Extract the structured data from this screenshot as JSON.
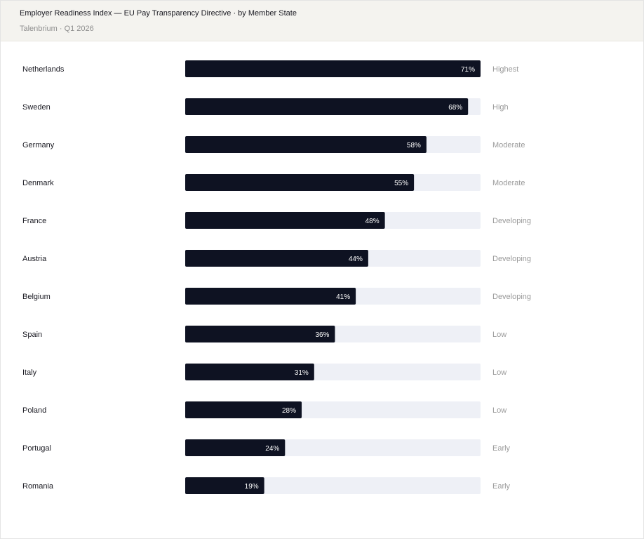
{
  "header": {
    "title": "Employer Readiness Index — EU Pay Transparency Directive · by Member State",
    "subtitle": "Talenbrium · Q1 2026"
  },
  "colors": {
    "bar_fill": "#0e1222",
    "track": "#eef0f6",
    "value_text": "#ffffff",
    "category_text": "#1a1a22",
    "tier_text": "#9a9a9a"
  },
  "chart_data": {
    "type": "bar",
    "orientation": "horizontal",
    "title": "Employer Readiness Index — EU Pay Transparency Directive · by Member State",
    "subtitle": "Talenbrium · Q1 2026",
    "xlim": [
      0,
      71
    ],
    "value_format": "percent",
    "categories": [
      "Netherlands",
      "Sweden",
      "Germany",
      "Denmark",
      "France",
      "Austria",
      "Belgium",
      "Spain",
      "Italy",
      "Poland",
      "Portugal",
      "Romania"
    ],
    "values": [
      71,
      68,
      58,
      55,
      48,
      44,
      41,
      36,
      31,
      28,
      24,
      19
    ],
    "value_labels": [
      "71%",
      "68%",
      "58%",
      "55%",
      "48%",
      "44%",
      "41%",
      "36%",
      "31%",
      "28%",
      "24%",
      "19%"
    ],
    "tiers": [
      "Highest",
      "High",
      "Moderate",
      "Moderate",
      "Developing",
      "Developing",
      "Developing",
      "Low",
      "Low",
      "Low",
      "Early",
      "Early"
    ],
    "grid": false,
    "legend": "none"
  }
}
